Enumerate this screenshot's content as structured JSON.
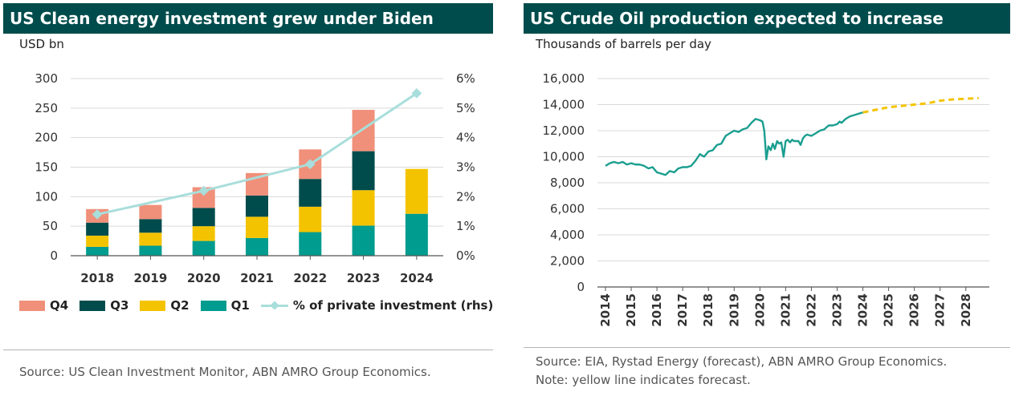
{
  "colors": {
    "title_bg": "#004c4c",
    "q1": "#009c8f",
    "q2": "#f4c300",
    "q3": "#004c4c",
    "q4": "#f0907a",
    "pct_line": "#a8dedb",
    "crude": "#1a9e8f",
    "forecast": "#f4c300",
    "grid": "#d9d9d9"
  },
  "left": {
    "title": "US Clean energy investment grew under Biden",
    "unit": "USD bn",
    "legend": {
      "q4": "Q4",
      "q3": "Q3",
      "q2": "Q2",
      "q1": "Q1",
      "pct": "% of private investment (rhs)"
    },
    "source": "Source: US Clean Investment Monitor, ABN AMRO Group Economics."
  },
  "right": {
    "title": "US Crude Oil production expected to increase",
    "unit": "Thousands of barrels per day",
    "source_line1": "Source: EIA, Rystad Energy (forecast), ABN AMRO Group Economics.",
    "source_line2": "Note: yellow line indicates forecast."
  },
  "chart_data": [
    {
      "type": "bar",
      "stacked": true,
      "categories": [
        "2018",
        "2019",
        "2020",
        "2021",
        "2022",
        "2023",
        "2024"
      ],
      "series": [
        {
          "name": "Q1",
          "values": [
            15,
            17,
            25,
            30,
            40,
            51,
            71
          ]
        },
        {
          "name": "Q2",
          "values": [
            19,
            22,
            25,
            36,
            43,
            60,
            76
          ]
        },
        {
          "name": "Q3",
          "values": [
            22,
            23,
            31,
            36,
            47,
            66,
            null
          ]
        },
        {
          "name": "Q4",
          "values": [
            23,
            24,
            35,
            38,
            50,
            70,
            null
          ]
        }
      ],
      "secondary_series": {
        "name": "% of private investment (rhs)",
        "type": "line",
        "values": [
          1.4,
          null,
          2.2,
          null,
          3.1,
          null,
          5.5
        ]
      },
      "ylabel": "USD bn",
      "ylim": [
        0,
        300
      ],
      "yticks": [
        "0",
        "50",
        "100",
        "150",
        "200",
        "250",
        "300"
      ],
      "y2lim": [
        0,
        6
      ],
      "y2ticks": [
        "0%",
        "1%",
        "2%",
        "3%",
        "4%",
        "5%",
        "6%"
      ],
      "grid": true,
      "legend_position": "bottom"
    },
    {
      "type": "line",
      "ylabel": "Thousands of barrels per day",
      "ylim": [
        0,
        16000
      ],
      "yticks": [
        "0",
        "2,000",
        "4,000",
        "6,000",
        "8,000",
        "10,000",
        "12,000",
        "14,000",
        "16,000"
      ],
      "xticks": [
        "2014",
        "2015",
        "2016",
        "2017",
        "2018",
        "2019",
        "2020",
        "2021",
        "2022",
        "2023",
        "2024",
        "2025",
        "2026",
        "2027",
        "2028"
      ],
      "xlim": [
        2014,
        2028.6
      ],
      "grid": true,
      "series": [
        {
          "x": [
            2014.0,
            2014.17,
            2014.33,
            2014.5,
            2014.67,
            2014.83,
            2015.0,
            2015.17,
            2015.33,
            2015.5,
            2015.67,
            2015.83,
            2016.0,
            2016.17,
            2016.33,
            2016.5,
            2016.67,
            2016.83,
            2017.0,
            2017.17,
            2017.33,
            2017.5,
            2017.67,
            2017.83,
            2018.0,
            2018.17,
            2018.33,
            2018.5,
            2018.67,
            2018.83,
            2019.0,
            2019.17,
            2019.33,
            2019.5,
            2019.67,
            2019.83,
            2020.0,
            2020.1,
            2020.17,
            2020.25,
            2020.33,
            2020.42,
            2020.5,
            2020.58,
            2020.67,
            2020.75,
            2020.83,
            2020.92,
            2021.0,
            2021.08,
            2021.17,
            2021.25,
            2021.33,
            2021.5,
            2021.58,
            2021.67,
            2021.75,
            2021.83,
            2022.0,
            2022.17,
            2022.33,
            2022.5,
            2022.67,
            2022.83,
            2023.0,
            2023.1,
            2023.17,
            2023.33,
            2023.5,
            2023.67,
            2023.83,
            2024.0
          ],
          "y": [
            9300,
            9500,
            9600,
            9500,
            9600,
            9400,
            9500,
            9400,
            9400,
            9300,
            9100,
            9200,
            8800,
            8700,
            8600,
            8900,
            8800,
            9100,
            9200,
            9200,
            9300,
            9700,
            10200,
            10000,
            10400,
            10500,
            10900,
            11000,
            11600,
            11800,
            12000,
            11900,
            12100,
            12200,
            12600,
            12900,
            12800,
            12700,
            12000,
            9800,
            10800,
            10500,
            11000,
            10600,
            11200,
            11000,
            11100,
            10000,
            11200,
            11300,
            11100,
            11300,
            11200,
            11200,
            10900,
            11400,
            11600,
            11700,
            11600,
            11800,
            12000,
            12100,
            12400,
            12400,
            12500,
            12700,
            12600,
            12900,
            13100,
            13200,
            13300,
            13400
          ]
        },
        {
          "x": [
            2024.0,
            2024.5,
            2025.0,
            2025.5,
            2026.0,
            2026.5,
            2027.0,
            2027.5,
            2028.0,
            2028.5
          ],
          "y": [
            13400,
            13600,
            13800,
            13900,
            14000,
            14100,
            14300,
            14400,
            14450,
            14500
          ]
        }
      ]
    }
  ]
}
